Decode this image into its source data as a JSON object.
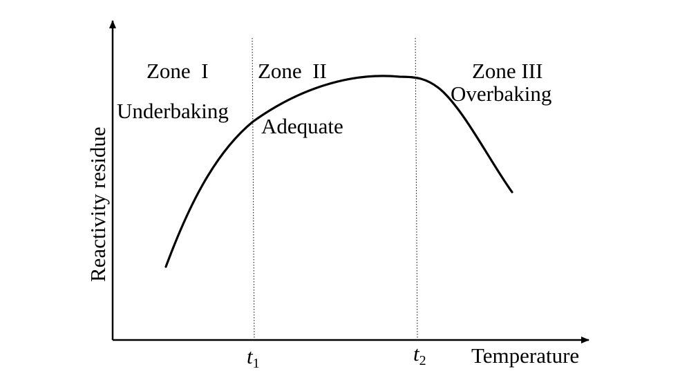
{
  "chart_data": {
    "type": "line",
    "xlabel": "Temperature",
    "ylabel": "Reactivity residue",
    "x_ticks": [
      {
        "base": "t",
        "sub": "1"
      },
      {
        "base": "t",
        "sub": "2"
      }
    ],
    "zones": [
      {
        "name": "Zone  I",
        "desc": "Underbaking"
      },
      {
        "name": "Zone  II",
        "desc": "Adequate"
      },
      {
        "name": "Zone III",
        "desc": "Overbaking"
      }
    ],
    "grid": false,
    "axis_arrows": true
  }
}
